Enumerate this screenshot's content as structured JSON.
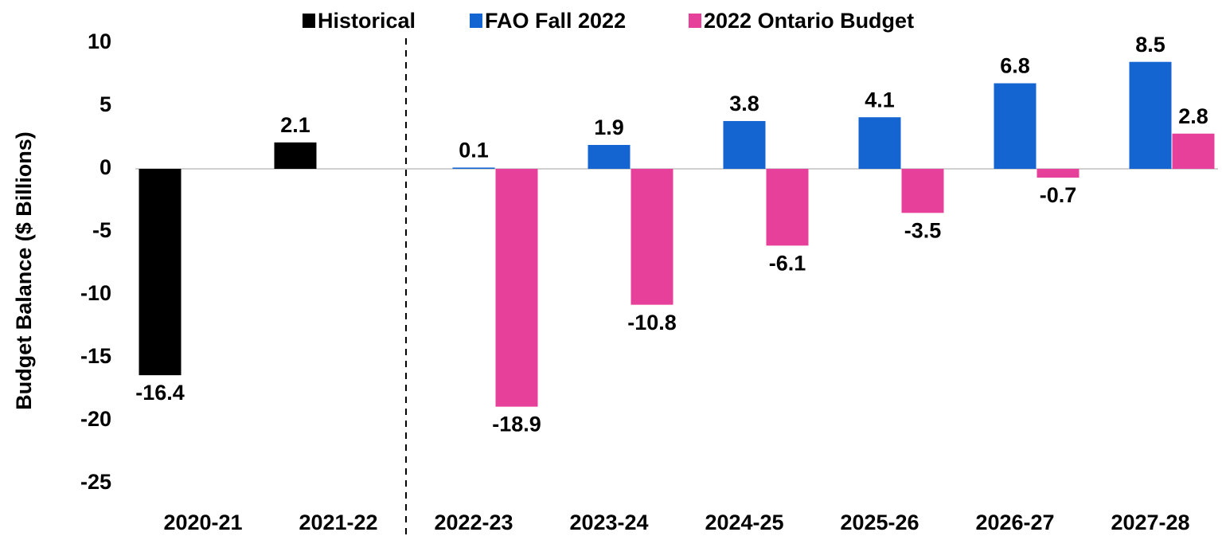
{
  "chart_data": {
    "type": "bar",
    "ylabel": "Budget Balance ($ Billions)",
    "categories": [
      "2020-21",
      "2021-22",
      "2022-23",
      "2023-24",
      "2024-25",
      "2025-26",
      "2026-27",
      "2027-28"
    ],
    "series": [
      {
        "name": "Historical",
        "color": "#000000",
        "values": [
          -16.4,
          2.1,
          null,
          null,
          null,
          null,
          null,
          null
        ]
      },
      {
        "name": "FAO Fall 2022",
        "color": "#1464d2",
        "values": [
          null,
          null,
          0.1,
          1.9,
          3.8,
          4.1,
          6.8,
          8.5
        ]
      },
      {
        "name": "2022 Ontario Budget",
        "color": "#e6409a",
        "values": [
          null,
          null,
          -18.9,
          -10.8,
          -6.1,
          -3.5,
          -0.7,
          2.8
        ]
      }
    ],
    "ylim": [
      -25,
      10
    ],
    "yticks": [
      -25,
      -20,
      -15,
      -10,
      -5,
      0,
      5,
      10
    ],
    "legend": "top"
  }
}
